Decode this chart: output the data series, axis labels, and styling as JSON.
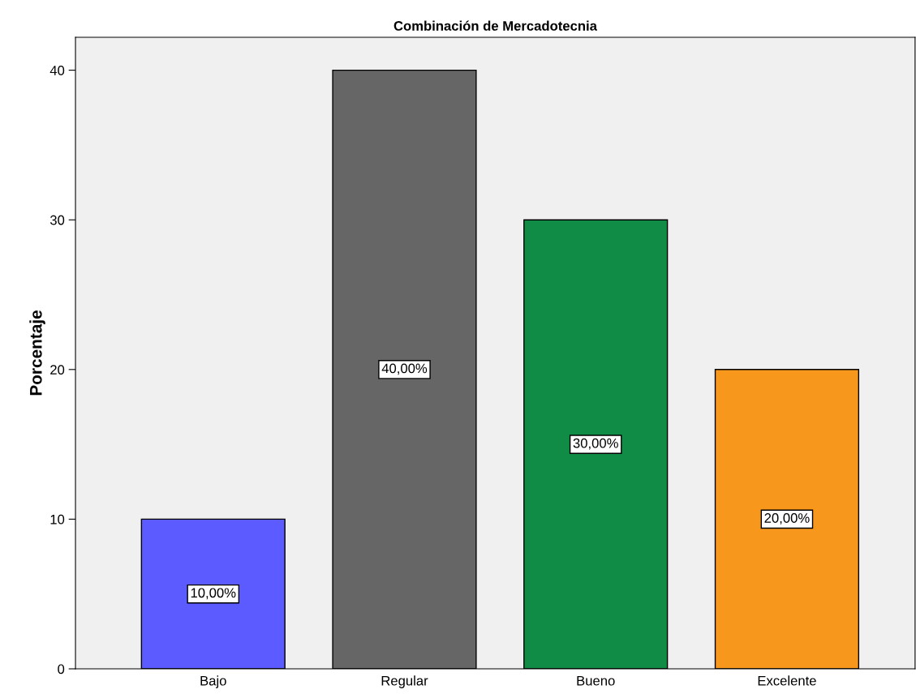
{
  "chart_data": {
    "type": "bar",
    "title": "Combinación de Mercadotecnia",
    "ylabel": "Porcentaje",
    "categories": [
      "Bajo",
      "Regular",
      "Bueno",
      "Excelente"
    ],
    "values": [
      10,
      40,
      30,
      20
    ],
    "colors": [
      "#5b5bff",
      "#666666",
      "#118c47",
      "#f7981d"
    ],
    "value_labels": [
      "10,00%",
      "40,00%",
      "30,00%",
      "20,00%"
    ],
    "ylim": [
      0,
      42.2
    ],
    "yticks": [
      0,
      10,
      20,
      30,
      40
    ],
    "grid": false
  }
}
